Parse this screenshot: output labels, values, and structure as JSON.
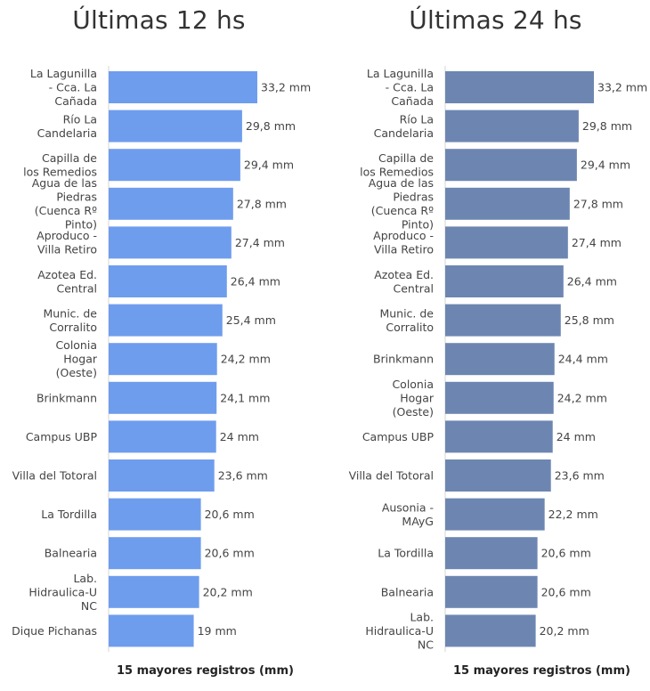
{
  "chart_data": [
    {
      "type": "bar",
      "orientation": "horizontal",
      "title": "Últimas 12 hs",
      "xlabel": "15 mayores registros (mm)",
      "color": "#6f9ded",
      "categories": [
        "La Lagunilla - Cca. La Cañada",
        "Río La Candelaria",
        "Capilla de los Remedios",
        "Agua de las Piedras (Cuenca Rº Pinto)",
        "Aproduco - Villa Retiro",
        "Azotea Ed. Central",
        "Munic. de Corralito",
        "Colonia Hogar (Oeste)",
        "Brinkmann",
        "Campus UBP",
        "Villa del Totoral",
        "La Tordilla",
        "Balnearia",
        "Lab. Hidraulica-UNC",
        "Dique Pichanas"
      ],
      "label_lines": [
        [
          "La Lagunilla",
          "- Cca. La",
          "Cañada"
        ],
        [
          "Río La",
          "Candelaria"
        ],
        [
          "Capilla de",
          "los Remedios"
        ],
        [
          "Agua de las",
          "Piedras",
          "(Cuenca Rº",
          "Pinto)"
        ],
        [
          "Aproduco -",
          "Villa Retiro"
        ],
        [
          "Azotea Ed.",
          "Central"
        ],
        [
          "Munic. de",
          "Corralito"
        ],
        [
          "Colonia",
          "Hogar",
          "(Oeste)"
        ],
        [
          "Brinkmann"
        ],
        [
          "Campus UBP"
        ],
        [
          "Villa del Totoral"
        ],
        [
          "La Tordilla"
        ],
        [
          "Balnearia"
        ],
        [
          "Lab.",
          "Hidraulica-U",
          "NC"
        ],
        [
          "Dique Pichanas"
        ]
      ],
      "values": [
        33.2,
        29.8,
        29.4,
        27.8,
        27.4,
        26.4,
        25.4,
        24.2,
        24.1,
        24,
        23.6,
        20.6,
        20.6,
        20.2,
        19
      ],
      "value_labels": [
        "33,2 mm",
        "29,8 mm",
        "29,4 mm",
        "27,8 mm",
        "27,4 mm",
        "26,4 mm",
        "25,4 mm",
        "24,2 mm",
        "24,1 mm",
        "24 mm",
        "23,6 mm",
        "20,6 mm",
        "20,6 mm",
        "20,2 mm",
        "19 mm"
      ],
      "xlim": [
        0,
        33.2
      ]
    },
    {
      "type": "bar",
      "orientation": "horizontal",
      "title": "Últimas 24 hs",
      "xlabel": "15 mayores registros (mm)",
      "color": "#6d86b1",
      "categories": [
        "La Lagunilla - Cca. La Cañada",
        "Río La Candelaria",
        "Capilla de los Remedios",
        "Agua de las Piedras (Cuenca Rº Pinto)",
        "Aproduco - Villa Retiro",
        "Azotea Ed. Central",
        "Munic. de Corralito",
        "Brinkmann",
        "Colonia Hogar (Oeste)",
        "Campus UBP",
        "Villa del Totoral",
        "Ausonia - MAyG",
        "La Tordilla",
        "Balnearia",
        "Lab. Hidraulica-UNC"
      ],
      "label_lines": [
        [
          "La Lagunilla",
          "- Cca. La",
          "Cañada"
        ],
        [
          "Río La",
          "Candelaria"
        ],
        [
          "Capilla de",
          "los Remedios"
        ],
        [
          "Agua de las",
          "Piedras",
          "(Cuenca Rº",
          "Pinto)"
        ],
        [
          "Aproduco -",
          "Villa Retiro"
        ],
        [
          "Azotea Ed.",
          "Central"
        ],
        [
          "Munic. de",
          "Corralito"
        ],
        [
          "Brinkmann"
        ],
        [
          "Colonia",
          "Hogar",
          "(Oeste)"
        ],
        [
          "Campus UBP"
        ],
        [
          "Villa del Totoral"
        ],
        [
          "Ausonia -",
          "MAyG"
        ],
        [
          "La Tordilla"
        ],
        [
          "Balnearia"
        ],
        [
          "Lab.",
          "Hidraulica-U",
          "NC"
        ]
      ],
      "values": [
        33.2,
        29.8,
        29.4,
        27.8,
        27.4,
        26.4,
        25.8,
        24.4,
        24.2,
        24,
        23.6,
        22.2,
        20.6,
        20.6,
        20.2
      ],
      "value_labels": [
        "33,2 mm",
        "29,8 mm",
        "29,4 mm",
        "27,8 mm",
        "27,4 mm",
        "26,4 mm",
        "25,8 mm",
        "24,4 mm",
        "24,2 mm",
        "24 mm",
        "23,6 mm",
        "22,2 mm",
        "20,6 mm",
        "20,6 mm",
        "20,2 mm"
      ],
      "xlim": [
        0,
        33.2
      ]
    }
  ]
}
